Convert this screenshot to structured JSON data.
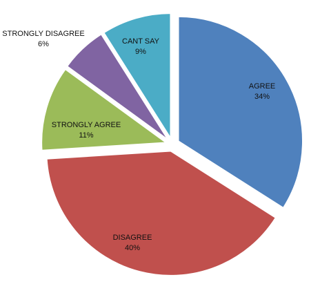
{
  "chart_data": {
    "type": "pie",
    "title": "",
    "exploded": true,
    "legend": "none",
    "slices": [
      {
        "name": "AGREE",
        "value": 34,
        "label": "34%",
        "color": "#4F81BD"
      },
      {
        "name": "DISAGREE",
        "value": 40,
        "label": "40%",
        "color": "#C0504D"
      },
      {
        "name": "STRONGLY AGREE",
        "value": 11,
        "label": "11%",
        "color": "#9BBB59"
      },
      {
        "name": "STRONGLY DISAGREE",
        "value": 6,
        "label": "6%",
        "color": "#8064A2"
      },
      {
        "name": "CANT SAY",
        "value": 9,
        "label": "9%",
        "color": "#4BACC6"
      }
    ]
  }
}
